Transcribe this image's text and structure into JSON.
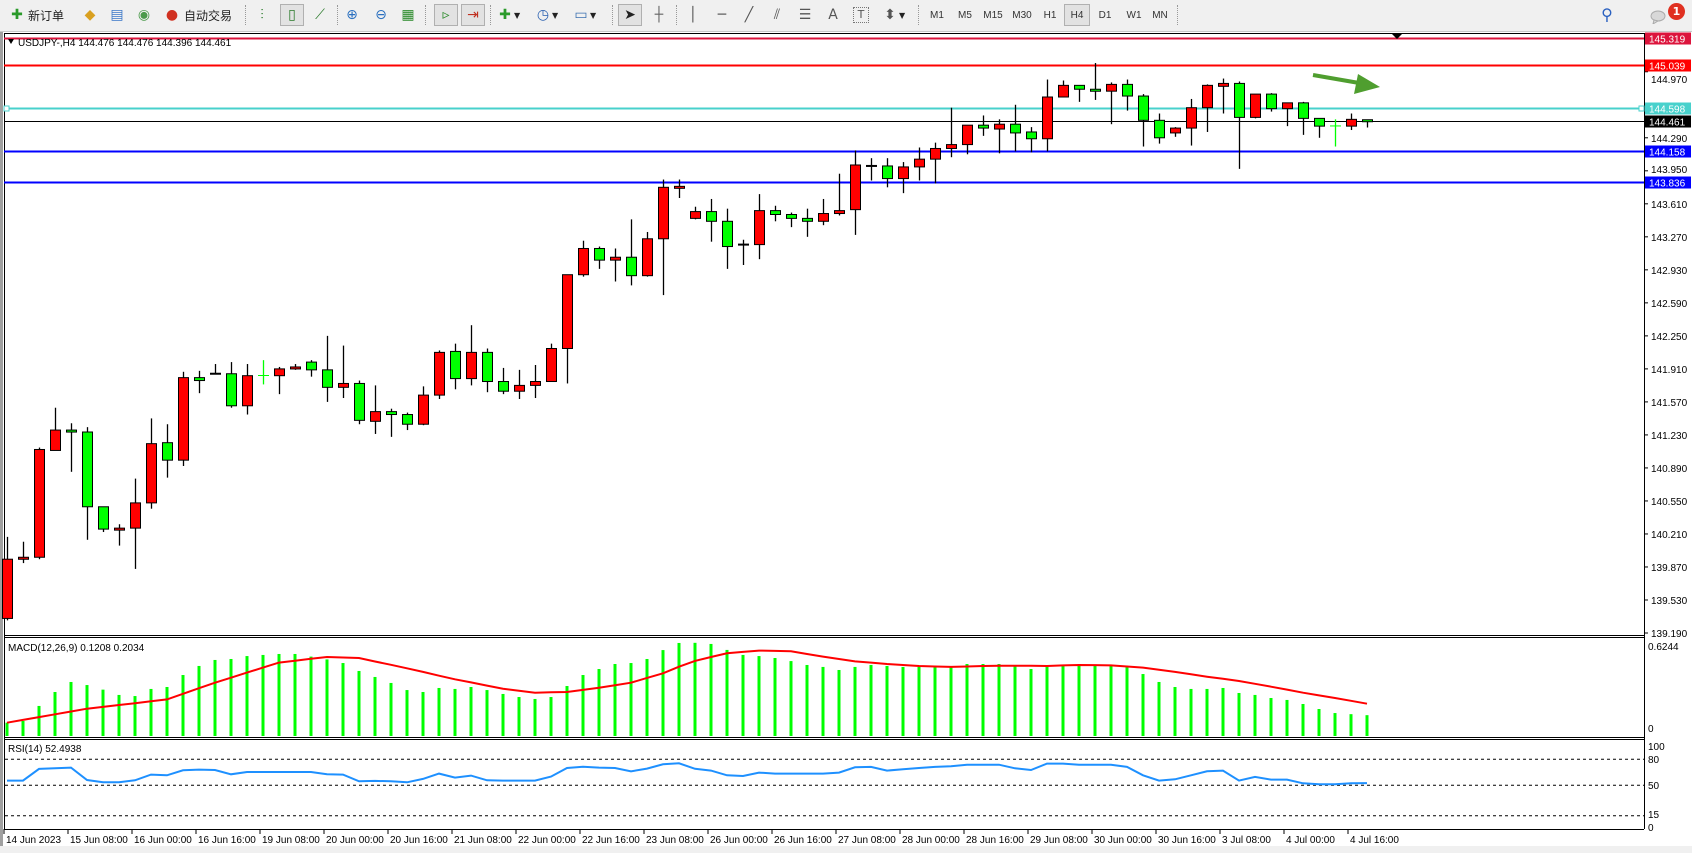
{
  "toolbar": {
    "new_order_label": "新订单",
    "auto_trade_label": "自动交易",
    "timeframes": [
      "M1",
      "M5",
      "M15",
      "M30",
      "H1",
      "H4",
      "D1",
      "W1",
      "MN"
    ],
    "active_timeframe": "H4",
    "notification_count": "1",
    "icons": [
      "new-order-icon",
      "market-watch-icon",
      "data-window-icon",
      "navigator-icon",
      "auto-trading-icon",
      "bar-chart-icon",
      "candlestick-icon",
      "line-chart-icon",
      "zoom-in-icon",
      "zoom-out-icon",
      "tile-windows-icon",
      "auto-scroll-icon",
      "chart-shift-icon",
      "new-chart-icon",
      "periods-icon",
      "templates-icon",
      "cursor-icon",
      "crosshair-icon",
      "vertical-line-icon",
      "horizontal-line-icon",
      "trendline-icon",
      "equidistant-channel-icon",
      "fibonacci-icon",
      "text-icon",
      "text-label-icon",
      "arrows-icon",
      "search-icon",
      "notification-icon"
    ],
    "text_tool_label": "A"
  },
  "chart": {
    "header": "USDJPY-,H4  144.476 144.476 144.396 144.461",
    "symbol": "USDJPY-",
    "timeframe": "H4",
    "colors": {
      "bull": "#ff0000",
      "bear": "#00ff00",
      "wick": "#000000",
      "background": "#ffffff",
      "arrow": "#4f9e2f"
    },
    "hlines": [
      {
        "price": "145.319",
        "color": "#dc143c"
      },
      {
        "price": "145.039",
        "color": "#ff0000"
      },
      {
        "price": "144.598",
        "color": "#48d1cc"
      },
      {
        "price": "144.461",
        "color": "#000000"
      },
      {
        "price": "144.158",
        "color": "#0000ff"
      },
      {
        "price": "143.836",
        "color": "#0000ff"
      }
    ],
    "annotation": "green-arrow-pointing-right"
  },
  "chart_data": [
    {
      "type": "candlestick",
      "price_ticks": [
        "144.970",
        "144.290",
        "143.950",
        "143.610",
        "143.270",
        "142.930",
        "142.590",
        "142.250",
        "141.910",
        "141.570",
        "141.230",
        "140.890",
        "140.550",
        "140.210",
        "139.870",
        "139.530",
        "139.190"
      ],
      "ylim": [
        139.19,
        145.36
      ],
      "x_tick_labels": [
        "14 Jun 2023",
        "15 Jun 08:00",
        "16 Jun 00:00",
        "16 Jun 16:00",
        "19 Jun 08:00",
        "20 Jun 00:00",
        "20 Jun 16:00",
        "21 Jun 08:00",
        "22 Jun 00:00",
        "22 Jun 16:00",
        "23 Jun 08:00",
        "26 Jun 00:00",
        "26 Jun 16:00",
        "27 Jun 08:00",
        "28 Jun 00:00",
        "28 Jun 16:00",
        "29 Jun 08:00",
        "30 Jun 00:00",
        "30 Jun 16:00",
        "3 Jul 08:00",
        "4 Jul 00:00",
        "4 Jul 16:00"
      ],
      "ohlc": [
        [
          139.34,
          140.18,
          139.32,
          139.95
        ],
        [
          139.95,
          140.13,
          139.91,
          139.97
        ],
        [
          139.97,
          141.1,
          139.95,
          141.08
        ],
        [
          141.07,
          141.51,
          141.07,
          141.28
        ],
        [
          141.28,
          141.35,
          140.85,
          141.26
        ],
        [
          141.26,
          141.31,
          140.15,
          140.49
        ],
        [
          140.49,
          140.49,
          140.23,
          140.26
        ],
        [
          140.26,
          140.31,
          140.09,
          140.27
        ],
        [
          140.27,
          140.78,
          139.85,
          140.53
        ],
        [
          140.53,
          141.4,
          140.47,
          141.14
        ],
        [
          141.15,
          141.34,
          140.79,
          140.97
        ],
        [
          140.97,
          141.88,
          140.91,
          141.82
        ],
        [
          141.82,
          141.89,
          141.66,
          141.79
        ],
        [
          141.86,
          141.96,
          141.86,
          141.86
        ],
        [
          141.86,
          141.98,
          141.51,
          141.53
        ],
        [
          141.53,
          141.96,
          141.44,
          141.84
        ],
        [
          141.842,
          142.0,
          141.75,
          141.84
        ],
        [
          141.84,
          141.93,
          141.65,
          141.91
        ],
        [
          141.91,
          141.96,
          141.9,
          141.93
        ],
        [
          141.98,
          142.0,
          141.83,
          141.9
        ],
        [
          141.9,
          142.25,
          141.57,
          141.72
        ],
        [
          141.72,
          142.15,
          141.61,
          141.76
        ],
        [
          141.76,
          141.79,
          141.34,
          141.38
        ],
        [
          141.37,
          141.74,
          141.24,
          141.47
        ],
        [
          141.47,
          141.5,
          141.21,
          141.44
        ],
        [
          141.44,
          141.46,
          141.28,
          141.34
        ],
        [
          141.34,
          141.73,
          141.33,
          141.64
        ],
        [
          141.64,
          142.1,
          141.6,
          142.08
        ],
        [
          142.09,
          142.17,
          141.7,
          141.81
        ],
        [
          141.81,
          142.36,
          141.74,
          142.08
        ],
        [
          142.08,
          142.12,
          141.67,
          141.78
        ],
        [
          141.78,
          141.92,
          141.65,
          141.68
        ],
        [
          141.68,
          141.9,
          141.6,
          141.74
        ],
        [
          141.74,
          141.95,
          141.61,
          141.78
        ],
        [
          141.78,
          142.17,
          141.78,
          142.12
        ],
        [
          142.12,
          142.88,
          141.76,
          142.88
        ],
        [
          142.88,
          143.23,
          142.86,
          143.15
        ],
        [
          143.15,
          143.17,
          142.94,
          143.03
        ],
        [
          143.03,
          143.15,
          142.81,
          143.06
        ],
        [
          143.06,
          143.45,
          142.77,
          142.87
        ],
        [
          142.87,
          143.32,
          142.86,
          143.25
        ],
        [
          143.25,
          143.86,
          142.67,
          143.78
        ],
        [
          143.78,
          143.86,
          143.67,
          143.79
        ],
        [
          143.46,
          143.58,
          143.45,
          143.53
        ],
        [
          143.53,
          143.66,
          143.22,
          143.43
        ],
        [
          143.43,
          143.56,
          142.94,
          143.17
        ],
        [
          143.19,
          143.24,
          142.98,
          143.19
        ],
        [
          143.19,
          143.71,
          143.04,
          143.54
        ],
        [
          143.54,
          143.59,
          143.43,
          143.5
        ],
        [
          143.5,
          143.52,
          143.37,
          143.46
        ],
        [
          143.46,
          143.56,
          143.27,
          143.43
        ],
        [
          143.43,
          143.66,
          143.39,
          143.51
        ],
        [
          143.51,
          143.92,
          143.49,
          143.54
        ],
        [
          143.55,
          144.16,
          143.29,
          144.01
        ],
        [
          144.0,
          144.08,
          143.85,
          144.0
        ],
        [
          144.0,
          144.08,
          143.78,
          143.87
        ],
        [
          143.87,
          144.04,
          143.72,
          143.99
        ],
        [
          143.99,
          144.19,
          143.85,
          144.07
        ],
        [
          144.07,
          144.24,
          143.82,
          144.18
        ],
        [
          144.18,
          144.6,
          144.09,
          144.22
        ],
        [
          144.22,
          144.42,
          144.12,
          144.42
        ],
        [
          144.42,
          144.52,
          144.31,
          144.39
        ],
        [
          144.38,
          144.48,
          144.13,
          144.43
        ],
        [
          144.43,
          144.63,
          144.15,
          144.34
        ],
        [
          144.35,
          144.4,
          144.14,
          144.28
        ],
        [
          144.28,
          144.89,
          144.15,
          144.71
        ],
        [
          144.71,
          144.88,
          144.71,
          144.83
        ],
        [
          144.83,
          144.83,
          144.66,
          144.79
        ],
        [
          144.79,
          145.06,
          144.68,
          144.77
        ],
        [
          144.77,
          144.86,
          144.43,
          144.84
        ],
        [
          144.84,
          144.89,
          144.57,
          144.72
        ],
        [
          144.72,
          144.74,
          144.2,
          144.47
        ],
        [
          144.47,
          144.54,
          144.23,
          144.29
        ],
        [
          144.34,
          144.4,
          144.3,
          144.39
        ],
        [
          144.39,
          144.69,
          144.21,
          144.6
        ],
        [
          144.6,
          144.84,
          144.35,
          144.83
        ],
        [
          144.82,
          144.9,
          144.54,
          144.85
        ],
        [
          144.85,
          144.87,
          143.97,
          144.5
        ],
        [
          144.5,
          144.74,
          144.49,
          144.74
        ],
        [
          144.74,
          144.75,
          144.56,
          144.59
        ],
        [
          144.59,
          144.65,
          144.41,
          144.65
        ],
        [
          144.65,
          144.66,
          144.32,
          144.49
        ],
        [
          144.49,
          144.49,
          144.29,
          144.41
        ],
        [
          144.412,
          144.48,
          144.2,
          144.41
        ],
        [
          144.41,
          144.54,
          144.37,
          144.48
        ],
        [
          144.476,
          144.476,
          144.396,
          144.461
        ]
      ]
    },
    {
      "type": "bar",
      "title": "MACD(12,26,9) 0.1208 0.2034",
      "y_ticks": [
        "0.6244",
        "0"
      ],
      "ylim": [
        0,
        0.6244
      ],
      "histogram_color": "#00ff00",
      "signal_color": "#ff0000",
      "histogram": [
        0.067,
        0.079,
        0.187,
        0.287,
        0.359,
        0.337,
        0.304,
        0.266,
        0.258,
        0.309,
        0.323,
        0.409,
        0.474,
        0.517,
        0.524,
        0.545,
        0.553,
        0.56,
        0.56,
        0.541,
        0.521,
        0.495,
        0.438,
        0.395,
        0.352,
        0.301,
        0.287,
        0.316,
        0.309,
        0.323,
        0.301,
        0.273,
        0.251,
        0.237,
        0.251,
        0.33,
        0.409,
        0.452,
        0.488,
        0.495,
        0.524,
        0.588,
        0.639,
        0.64,
        0.632,
        0.589,
        0.553,
        0.545,
        0.531,
        0.509,
        0.481,
        0.467,
        0.445,
        0.467,
        0.481,
        0.474,
        0.467,
        0.467,
        0.467,
        0.467,
        0.488,
        0.488,
        0.488,
        0.474,
        0.452,
        0.467,
        0.474,
        0.474,
        0.474,
        0.474,
        0.467,
        0.416,
        0.359,
        0.323,
        0.309,
        0.309,
        0.316,
        0.28,
        0.266,
        0.244,
        0.23,
        0.201,
        0.165,
        0.136,
        0.128,
        0.1208
      ],
      "signal": [
        0.067,
        0.087,
        0.107,
        0.127,
        0.147,
        0.167,
        0.18,
        0.194,
        0.207,
        0.22,
        0.234,
        0.274,
        0.314,
        0.354,
        0.39,
        0.426,
        0.462,
        0.498,
        0.511,
        0.525,
        0.538,
        0.535,
        0.531,
        0.506,
        0.482,
        0.457,
        0.431,
        0.404,
        0.378,
        0.356,
        0.333,
        0.311,
        0.296,
        0.282,
        0.285,
        0.287,
        0.302,
        0.318,
        0.336,
        0.354,
        0.388,
        0.421,
        0.469,
        0.51,
        0.538,
        0.565,
        0.575,
        0.584,
        0.582,
        0.579,
        0.56,
        0.541,
        0.524,
        0.507,
        0.498,
        0.488,
        0.481,
        0.474,
        0.47,
        0.467,
        0.47,
        0.474,
        0.475,
        0.476,
        0.475,
        0.474,
        0.478,
        0.481,
        0.48,
        0.478,
        0.47,
        0.462,
        0.447,
        0.431,
        0.414,
        0.397,
        0.382,
        0.366,
        0.346,
        0.325,
        0.304,
        0.282,
        0.263,
        0.244,
        0.224,
        0.2034
      ]
    },
    {
      "type": "line",
      "title": "RSI(14) 52.4938",
      "y_ticks": [
        "100",
        "80",
        "50",
        "15",
        "0"
      ],
      "levels": [
        80,
        50,
        15
      ],
      "ylim": [
        0,
        100
      ],
      "line_color": "#1e90ff",
      "values": [
        55.4,
        55.4,
        68.8,
        69.5,
        70.3,
        56.1,
        53.4,
        53.4,
        55.7,
        62.3,
        61.5,
        67.2,
        68.0,
        67.6,
        62.6,
        65.3,
        65.3,
        65.3,
        65.3,
        65.3,
        62.6,
        62.3,
        54.6,
        55.0,
        54.6,
        53.4,
        57.3,
        63.4,
        58.8,
        61.1,
        55.7,
        55.4,
        55.4,
        55.4,
        60.0,
        69.9,
        71.4,
        70.3,
        69.9,
        66.1,
        69.2,
        74.1,
        75.3,
        69.0,
        66.9,
        61.5,
        60.7,
        64.6,
        63.4,
        63.4,
        63.4,
        63.4,
        64.6,
        70.7,
        71.1,
        66.9,
        68.4,
        69.9,
        71.1,
        71.8,
        73.7,
        73.7,
        73.7,
        69.5,
        67.6,
        74.9,
        74.9,
        73.7,
        73.7,
        73.7,
        71.1,
        61.5,
        55.4,
        56.9,
        61.5,
        66.1,
        66.9,
        55.4,
        59.6,
        56.5,
        56.5,
        52.3,
        51.1,
        51.1,
        52.3,
        52.4938
      ]
    }
  ]
}
